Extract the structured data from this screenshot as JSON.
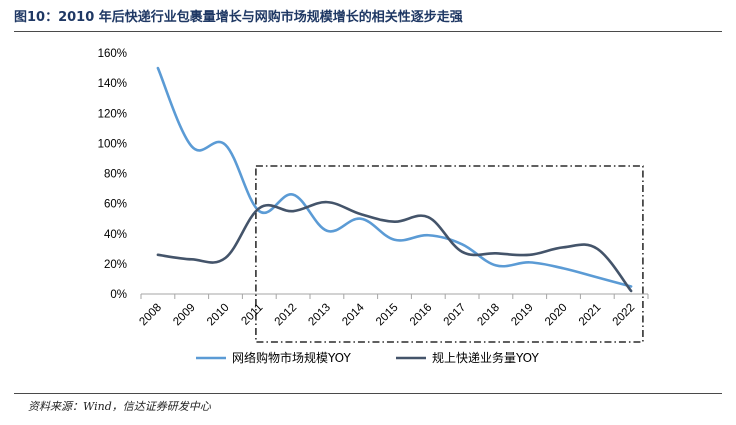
{
  "title": "图10：2010 年后快递行业包裹量增长与网购市场规模增长的相关性逐步走强",
  "source": "资料来源：Wind，信达证券研发中心",
  "chart_data": {
    "type": "line",
    "x": [
      "2008",
      "2009",
      "2010",
      "2011",
      "2012",
      "2013",
      "2014",
      "2015",
      "2016",
      "2017",
      "2018",
      "2019",
      "2020",
      "2021",
      "2022"
    ],
    "y_ticks": [
      "0%",
      "20%",
      "40%",
      "60%",
      "80%",
      "100%",
      "120%",
      "140%",
      "160%"
    ],
    "ylim": [
      0,
      160
    ],
    "y_unit": "%",
    "highlight_range": [
      "2011",
      "2022"
    ],
    "series": [
      {
        "name": "网络购物市场规模YOY",
        "color": "#5b9bd5",
        "values": [
          150,
          98,
          99,
          55,
          66,
          42,
          50,
          36,
          39,
          33,
          19,
          21,
          17,
          11,
          5
        ]
      },
      {
        "name": "规上快递业务量YOY",
        "color": "#44546a",
        "values": [
          26,
          23,
          24,
          57,
          55,
          61,
          53,
          48,
          51,
          28,
          27,
          26,
          31,
          30,
          2
        ]
      }
    ]
  }
}
